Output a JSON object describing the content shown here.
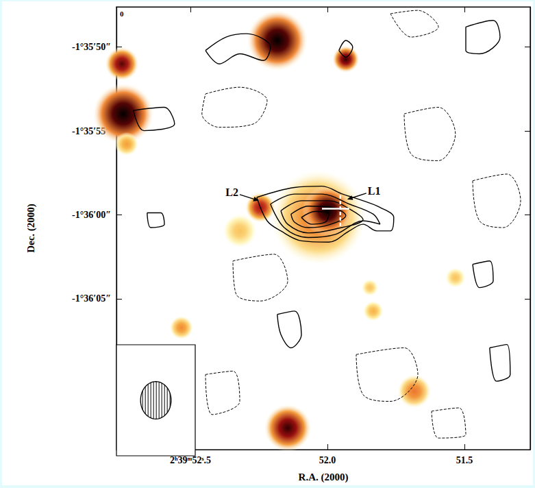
{
  "chart_data": {
    "type": "image_contour",
    "x_label": "R.A. (2000)",
    "y_label": "Dec. (2000)",
    "corner_label": "0",
    "xlim": [
      52.77,
      51.26
    ],
    "xticks": [
      {
        "value": 52.5,
        "label": "2ʰ39ᵐ52ˢ.5"
      },
      {
        "value": 52.0,
        "label": "52.0"
      },
      {
        "value": 51.5,
        "label": "51.5"
      }
    ],
    "ylim": [
      -5774.0,
      -5747.6
    ],
    "yticks": [
      {
        "value": -5750,
        "label": "-1°35′50″"
      },
      {
        "value": -5755,
        "label": "-1°35′55″"
      },
      {
        "value": -5760,
        "label": "-1°36′00″"
      },
      {
        "value": -5765,
        "label": "-1°36′05″"
      }
    ],
    "image_sources": [
      {
        "ra": 52.183,
        "dec": -5749.6,
        "radius": 1.8,
        "peak": 1.0
      },
      {
        "ra": 52.745,
        "dec": -5753.98,
        "radius": 1.8,
        "peak": 1.0
      },
      {
        "ra": 52.75,
        "dec": -5751.0,
        "radius": 1.0,
        "peak": 0.85
      },
      {
        "ra": 51.933,
        "dec": -5750.72,
        "radius": 0.8,
        "peak": 0.9
      },
      {
        "ra": 52.033,
        "dec": -5760.16,
        "radius": 2.8,
        "peak": 0.5
      },
      {
        "ra": 52.0,
        "dec": -5759.76,
        "radius": 1.5,
        "peak": 1.0
      },
      {
        "ra": 52.245,
        "dec": -5759.56,
        "radius": 0.9,
        "peak": 0.75
      },
      {
        "ra": 52.32,
        "dec": -5760.96,
        "radius": 1.0,
        "peak": 0.3
      },
      {
        "ra": 52.145,
        "dec": -5772.71,
        "radius": 1.4,
        "peak": 0.9
      },
      {
        "ra": 51.683,
        "dec": -5770.52,
        "radius": 1.0,
        "peak": 0.5
      },
      {
        "ra": 51.833,
        "dec": -5765.74,
        "radius": 0.6,
        "peak": 0.35
      },
      {
        "ra": 52.533,
        "dec": -5766.73,
        "radius": 0.7,
        "peak": 0.45
      },
      {
        "ra": 52.733,
        "dec": -5755.78,
        "radius": 0.7,
        "peak": 0.4
      },
      {
        "ra": 51.533,
        "dec": -5763.75,
        "radius": 0.6,
        "peak": 0.3
      },
      {
        "ra": 51.845,
        "dec": -5764.34,
        "radius": 0.5,
        "peak": 0.3
      }
    ],
    "contours": [
      {
        "line_style": "solid",
        "points": [
          [
            52.258,
            -5758.96
          ],
          [
            52.12,
            -5758.37
          ],
          [
            52.02,
            -5758.29
          ],
          [
            51.945,
            -5758.76
          ],
          [
            51.87,
            -5759.16
          ],
          [
            51.808,
            -5759.56
          ],
          [
            51.758,
            -5760.16
          ],
          [
            51.77,
            -5760.96
          ],
          [
            51.82,
            -5760.96
          ],
          [
            51.87,
            -5760.56
          ],
          [
            51.92,
            -5760.96
          ],
          [
            51.995,
            -5761.63
          ],
          [
            52.095,
            -5761.55
          ],
          [
            52.17,
            -5760.96
          ],
          [
            52.22,
            -5760.36
          ],
          [
            52.258,
            -5758.96
          ]
        ]
      },
      {
        "line_style": "solid",
        "points": [
          [
            52.208,
            -5759.36
          ],
          [
            52.12,
            -5758.76
          ],
          [
            52.02,
            -5758.76
          ],
          [
            51.92,
            -5759.36
          ],
          [
            51.833,
            -5759.96
          ],
          [
            51.808,
            -5760.56
          ],
          [
            51.87,
            -5760.36
          ],
          [
            51.97,
            -5761.16
          ],
          [
            52.07,
            -5761.35
          ],
          [
            52.158,
            -5760.76
          ],
          [
            52.208,
            -5759.36
          ]
        ]
      },
      {
        "line_style": "solid",
        "points": [
          [
            52.17,
            -5759.76
          ],
          [
            52.095,
            -5759.16
          ],
          [
            51.995,
            -5759.16
          ],
          [
            51.908,
            -5759.76
          ],
          [
            51.87,
            -5760.28
          ],
          [
            51.97,
            -5760.84
          ],
          [
            52.07,
            -5761.08
          ],
          [
            52.145,
            -5760.56
          ],
          [
            52.17,
            -5759.76
          ]
        ]
      },
      {
        "line_style": "solid",
        "points": [
          [
            52.133,
            -5759.96
          ],
          [
            52.07,
            -5759.48
          ],
          [
            51.983,
            -5759.56
          ],
          [
            51.933,
            -5760.04
          ],
          [
            51.995,
            -5760.6
          ],
          [
            52.07,
            -5760.76
          ],
          [
            52.12,
            -5760.44
          ],
          [
            52.133,
            -5759.96
          ]
        ]
      },
      {
        "line_style": "solid",
        "points": [
          [
            52.095,
            -5760.16
          ],
          [
            52.045,
            -5759.8
          ],
          [
            51.995,
            -5759.96
          ],
          [
            52.008,
            -5760.44
          ],
          [
            52.058,
            -5760.56
          ],
          [
            52.095,
            -5760.16
          ]
        ]
      },
      {
        "line_style": "solid",
        "points": [
          [
            52.445,
            -5750.2
          ],
          [
            52.37,
            -5749.4
          ],
          [
            52.295,
            -5749.2
          ],
          [
            52.208,
            -5750.0
          ],
          [
            52.233,
            -5750.8
          ],
          [
            52.32,
            -5750.4
          ],
          [
            52.395,
            -5751.0
          ],
          [
            52.445,
            -5750.2
          ]
        ]
      },
      {
        "line_style": "solid",
        "points": [
          [
            51.958,
            -5750.2
          ],
          [
            51.933,
            -5749.6
          ],
          [
            51.908,
            -5750.0
          ],
          [
            51.933,
            -5750.6
          ],
          [
            51.958,
            -5750.2
          ]
        ]
      },
      {
        "line_style": "solid",
        "points": [
          [
            51.495,
            -5748.8
          ],
          [
            51.395,
            -5748.41
          ],
          [
            51.37,
            -5749.4
          ],
          [
            51.445,
            -5750.4
          ],
          [
            51.495,
            -5750.2
          ],
          [
            51.495,
            -5748.8
          ]
        ]
      },
      {
        "line_style": "solid",
        "points": [
          [
            51.47,
            -5762.95
          ],
          [
            51.408,
            -5762.75
          ],
          [
            51.395,
            -5763.94
          ],
          [
            51.445,
            -5764.34
          ],
          [
            51.47,
            -5762.95
          ]
        ]
      },
      {
        "line_style": "solid",
        "points": [
          [
            52.183,
            -5765.94
          ],
          [
            52.12,
            -5765.74
          ],
          [
            52.095,
            -5767.13
          ],
          [
            52.133,
            -5767.93
          ],
          [
            52.17,
            -5767.13
          ],
          [
            52.183,
            -5765.94
          ]
        ]
      },
      {
        "line_style": "solid",
        "points": [
          [
            51.408,
            -5767.93
          ],
          [
            51.345,
            -5767.73
          ],
          [
            51.333,
            -5769.52
          ],
          [
            51.383,
            -5769.92
          ],
          [
            51.408,
            -5767.93
          ]
        ]
      },
      {
        "line_style": "solid",
        "points": [
          [
            52.708,
            -5753.78
          ],
          [
            52.595,
            -5753.59
          ],
          [
            52.558,
            -5754.58
          ],
          [
            52.67,
            -5754.98
          ],
          [
            52.708,
            -5753.78
          ]
        ]
      },
      {
        "line_style": "solid",
        "points": [
          [
            52.658,
            -5759.88
          ],
          [
            52.608,
            -5759.88
          ],
          [
            52.595,
            -5760.56
          ],
          [
            52.645,
            -5760.76
          ],
          [
            52.658,
            -5759.88
          ]
        ]
      },
      {
        "line_style": "dashed",
        "points": [
          [
            52.445,
            -5752.79
          ],
          [
            52.32,
            -5752.39
          ],
          [
            52.22,
            -5753.19
          ],
          [
            52.27,
            -5754.58
          ],
          [
            52.395,
            -5754.78
          ],
          [
            52.458,
            -5753.98
          ],
          [
            52.445,
            -5752.79
          ]
        ]
      },
      {
        "line_style": "dashed",
        "points": [
          [
            51.72,
            -5753.98
          ],
          [
            51.595,
            -5753.59
          ],
          [
            51.533,
            -5755.18
          ],
          [
            51.595,
            -5756.77
          ],
          [
            51.695,
            -5756.37
          ],
          [
            51.72,
            -5753.98
          ]
        ]
      },
      {
        "line_style": "dashed",
        "points": [
          [
            52.345,
            -5762.75
          ],
          [
            52.195,
            -5762.35
          ],
          [
            52.145,
            -5763.94
          ],
          [
            52.245,
            -5765.14
          ],
          [
            52.333,
            -5764.74
          ],
          [
            52.345,
            -5762.75
          ]
        ]
      },
      {
        "line_style": "dashed",
        "points": [
          [
            51.895,
            -5768.33
          ],
          [
            51.72,
            -5767.93
          ],
          [
            51.67,
            -5769.52
          ],
          [
            51.77,
            -5771.12
          ],
          [
            51.87,
            -5770.72
          ],
          [
            51.895,
            -5768.33
          ]
        ]
      },
      {
        "line_style": "dashed",
        "points": [
          [
            51.47,
            -5757.97
          ],
          [
            51.345,
            -5757.57
          ],
          [
            51.295,
            -5759.16
          ],
          [
            51.358,
            -5760.76
          ],
          [
            51.445,
            -5760.36
          ],
          [
            51.47,
            -5757.97
          ]
        ]
      },
      {
        "line_style": "dashed",
        "points": [
          [
            51.77,
            -5748.01
          ],
          [
            51.67,
            -5747.81
          ],
          [
            51.595,
            -5748.8
          ],
          [
            51.695,
            -5749.4
          ],
          [
            51.77,
            -5748.01
          ]
        ]
      },
      {
        "line_style": "dashed",
        "points": [
          [
            52.445,
            -5769.52
          ],
          [
            52.345,
            -5769.32
          ],
          [
            52.32,
            -5771.12
          ],
          [
            52.42,
            -5771.91
          ],
          [
            52.445,
            -5769.52
          ]
        ]
      },
      {
        "line_style": "dashed",
        "points": [
          [
            51.62,
            -5771.71
          ],
          [
            51.52,
            -5771.51
          ],
          [
            51.495,
            -5773.11
          ],
          [
            51.595,
            -5773.31
          ],
          [
            51.62,
            -5771.71
          ]
        ]
      }
    ],
    "annotations": [
      {
        "text": "L2",
        "ra": 52.25,
        "dec": -5759.16
      },
      {
        "text": "L1",
        "ra": 51.928,
        "dec": -5759.08
      }
    ],
    "position_marker": {
      "ra": 51.953,
      "dec": -5759.64,
      "ra_extent": [
        52.02,
        51.92
      ],
      "dec_extent": [
        -5758.84,
        -5760.76
      ]
    },
    "beam": {
      "major": 2.2,
      "minor": 1.8
    }
  }
}
